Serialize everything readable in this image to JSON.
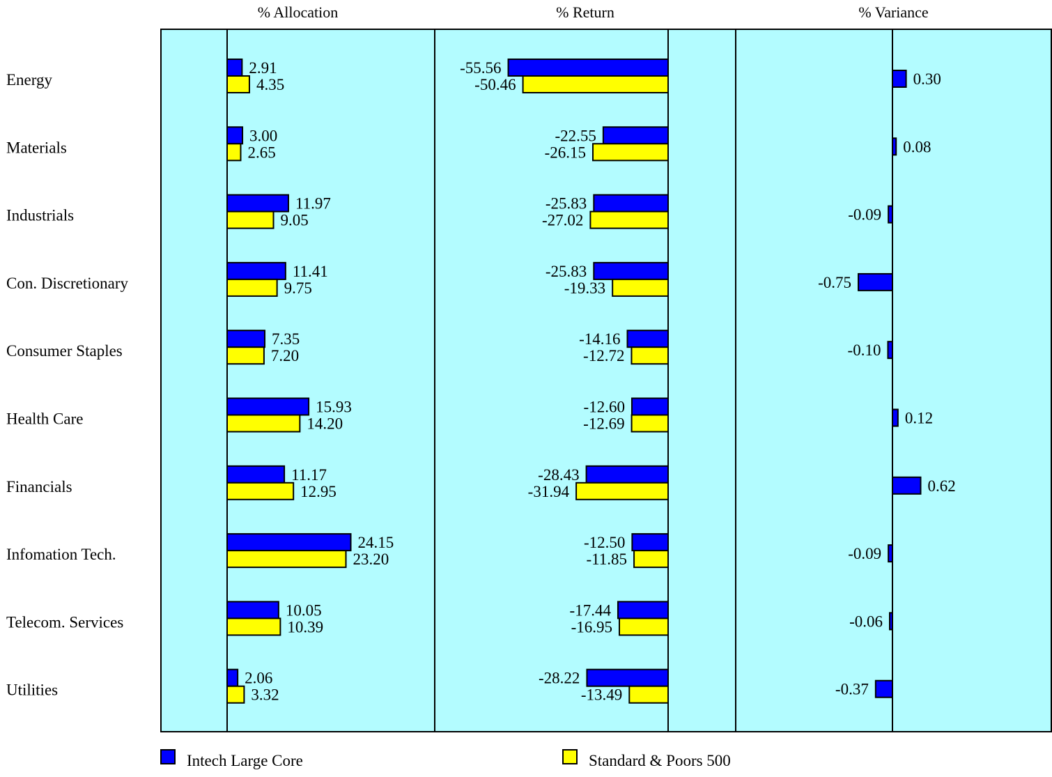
{
  "chart_data": {
    "type": "bar",
    "orientation": "horizontal",
    "categories": [
      "Energy",
      "Materials",
      "Industrials",
      "Con. Discretionary",
      "Consumer Staples",
      "Health Care",
      "Financials",
      "Infomation Tech.",
      "Telecom. Services",
      "Utilities"
    ],
    "panels": [
      {
        "title": "% Allocation",
        "series": [
          {
            "name": "Intech Large Core",
            "values": [
              2.91,
              3.0,
              11.97,
              11.41,
              7.35,
              15.93,
              11.17,
              24.15,
              10.05,
              2.06
            ]
          },
          {
            "name": "Standard & Poors 500",
            "values": [
              4.35,
              2.65,
              9.05,
              9.75,
              7.2,
              14.2,
              12.95,
              23.2,
              10.39,
              3.32
            ]
          }
        ]
      },
      {
        "title": "% Return",
        "series": [
          {
            "name": "Intech Large Core",
            "values": [
              -55.56,
              -22.55,
              -25.83,
              -25.83,
              -14.16,
              -12.6,
              -28.43,
              -12.5,
              -17.44,
              -28.22
            ]
          },
          {
            "name": "Standard & Poors 500",
            "values": [
              -50.46,
              -26.15,
              -27.02,
              -19.33,
              -12.72,
              -12.69,
              -31.94,
              -11.85,
              -16.95,
              -13.49
            ]
          }
        ]
      },
      {
        "title": "% Variance",
        "series": [
          {
            "name": "Intech Large Core",
            "values": [
              0.3,
              0.08,
              -0.09,
              -0.75,
              -0.1,
              0.12,
              0.62,
              -0.09,
              -0.06,
              -0.37
            ]
          }
        ]
      }
    ],
    "legend": [
      {
        "label": "Intech Large Core",
        "color": "#0000ff"
      },
      {
        "label": "Standard & Poors 500",
        "color": "#ffff00"
      }
    ],
    "colors": {
      "background": "#b3fcff",
      "intech": "#0000ff",
      "sp500": "#ffff00"
    },
    "legend_position": "bottom"
  }
}
